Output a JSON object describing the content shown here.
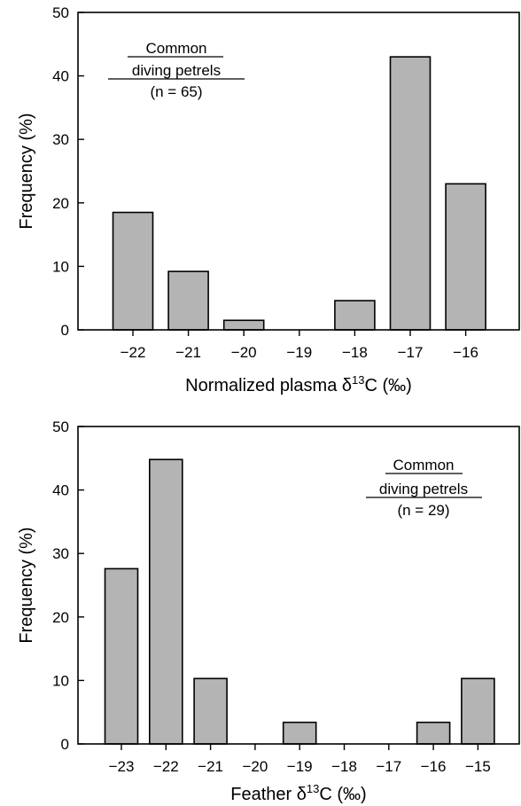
{
  "chart_data": [
    {
      "type": "bar",
      "categories": [
        "−22",
        "−21",
        "−20",
        "−19",
        "−18",
        "−17",
        "−16"
      ],
      "values": [
        18.5,
        9.2,
        1.5,
        0,
        4.6,
        43,
        23
      ],
      "xlabel_pre": "Normalized plasma δ",
      "xlabel_sup": "13",
      "xlabel_post": "C (‰)",
      "ylabel": "Frequency (%)",
      "ylim": [
        0,
        50
      ],
      "yticks": [
        0,
        10,
        20,
        30,
        40,
        50
      ],
      "bar_color": "#b4b4b4",
      "annotation": {
        "line1": "Common",
        "line2": "diving petrels",
        "line3": "(n = 65)",
        "position": "top-left"
      }
    },
    {
      "type": "bar",
      "categories": [
        "−23",
        "−22",
        "−21",
        "−20",
        "−19",
        "−18",
        "−17",
        "−16",
        "−15"
      ],
      "values": [
        27.6,
        44.8,
        10.3,
        0,
        3.4,
        0,
        0,
        3.4,
        10.3
      ],
      "xlabel_pre": "Feather δ",
      "xlabel_sup": "13",
      "xlabel_post": "C (‰)",
      "ylabel": "Frequency (%)",
      "ylim": [
        0,
        50
      ],
      "yticks": [
        0,
        10,
        20,
        30,
        40,
        50
      ],
      "bar_color": "#b4b4b4",
      "annotation": {
        "line1": "Common",
        "line2": "diving petrels",
        "line3": "(n = 29)",
        "position": "top-right"
      }
    }
  ]
}
